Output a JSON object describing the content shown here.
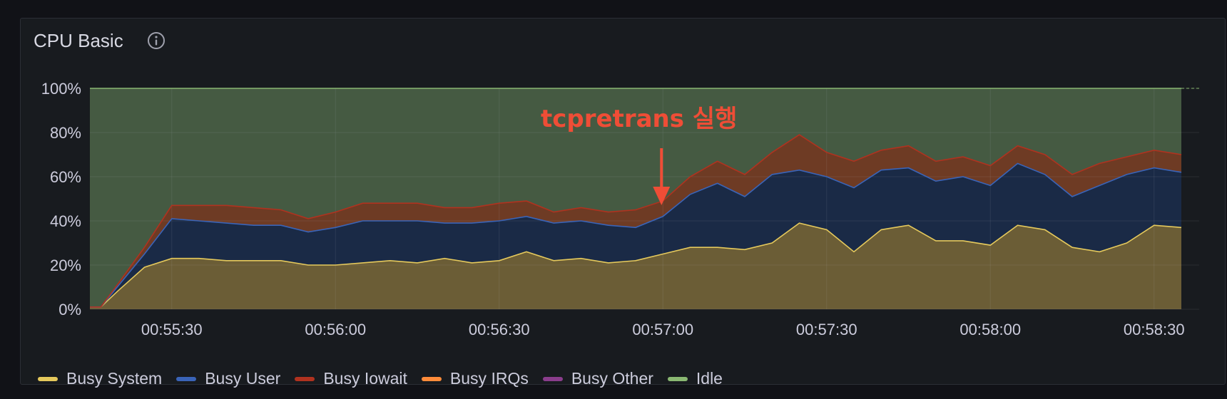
{
  "panel": {
    "title": "CPU Basic",
    "info_icon": "info-circle-icon"
  },
  "annotation": {
    "text": "tcpretrans 실행",
    "color": "#ef4d36",
    "at_x": "00:57:00"
  },
  "chart_data": {
    "type": "area",
    "stacked": true,
    "y_ticks": [
      "0%",
      "20%",
      "40%",
      "60%",
      "80%",
      "100%"
    ],
    "ylim": [
      0,
      100
    ],
    "x_ticks": [
      "00:55:30",
      "00:56:00",
      "00:56:30",
      "00:57:00",
      "00:57:30",
      "00:58:00",
      "00:58:30"
    ],
    "x": [
      "00:55:15",
      "00:55:17",
      "00:55:20",
      "00:55:25",
      "00:55:30",
      "00:55:35",
      "00:55:40",
      "00:55:45",
      "00:55:50",
      "00:55:55",
      "00:56:00",
      "00:56:05",
      "00:56:10",
      "00:56:15",
      "00:56:20",
      "00:56:25",
      "00:56:30",
      "00:56:35",
      "00:56:40",
      "00:56:45",
      "00:56:50",
      "00:56:55",
      "00:57:00",
      "00:57:05",
      "00:57:10",
      "00:57:15",
      "00:57:20",
      "00:57:25",
      "00:57:30",
      "00:57:35",
      "00:57:40",
      "00:57:45",
      "00:57:50",
      "00:57:55",
      "00:58:00",
      "00:58:05",
      "00:58:10",
      "00:58:15",
      "00:58:20",
      "00:58:25",
      "00:58:30",
      "00:58:35"
    ],
    "grid": true,
    "legend_position": "bottom",
    "series": [
      {
        "name": "Busy System",
        "color": "#e5c95c",
        "fill": "#6b5d36",
        "values": [
          1,
          1,
          8,
          19,
          23,
          23,
          22,
          22,
          22,
          20,
          20,
          21,
          22,
          21,
          23,
          21,
          22,
          26,
          22,
          23,
          21,
          22,
          25,
          28,
          28,
          27,
          30,
          39,
          36,
          26,
          36,
          38,
          31,
          31,
          29,
          38,
          36,
          28,
          26,
          30,
          38,
          37
        ]
      },
      {
        "name": "Busy User",
        "color": "#3a64b8",
        "fill": "#1a2a46",
        "values": [
          0,
          0,
          2,
          6,
          18,
          17,
          17,
          16,
          16,
          15,
          17,
          19,
          18,
          19,
          16,
          18,
          18,
          16,
          17,
          17,
          17,
          15,
          17,
          24,
          29,
          24,
          31,
          24,
          24,
          29,
          27,
          26,
          27,
          29,
          27,
          28,
          25,
          23,
          30,
          31,
          26,
          25
        ]
      },
      {
        "name": "Busy Iowait",
        "color": "#b0321f",
        "fill": "#6e3b24",
        "values": [
          0,
          0,
          1,
          3,
          6,
          7,
          8,
          8,
          7,
          6,
          7,
          8,
          8,
          8,
          7,
          7,
          8,
          7,
          5,
          6,
          6,
          8,
          7,
          8,
          10,
          10,
          10,
          16,
          11,
          12,
          9,
          10,
          9,
          9,
          9,
          8,
          9,
          10,
          10,
          8,
          8,
          8
        ]
      },
      {
        "name": "Busy IRQs",
        "color": "#ff8c3a",
        "fill": "#7a4a2a",
        "values": [
          0,
          0,
          0,
          0,
          0,
          0,
          0,
          0,
          0,
          0,
          0,
          0,
          0,
          0,
          0,
          0,
          0,
          0,
          0,
          0,
          0,
          0,
          0,
          0,
          0,
          0,
          0,
          0,
          0,
          0,
          0,
          0,
          0,
          0,
          0,
          0,
          0,
          0,
          0,
          0,
          0,
          0
        ]
      },
      {
        "name": "Busy Other",
        "color": "#8a3d8c",
        "fill": "#6e3b24",
        "values": [
          0,
          0,
          0,
          0,
          0,
          0,
          0,
          0,
          0,
          0,
          0,
          0,
          0,
          0,
          0,
          0,
          0,
          0,
          0,
          0,
          0,
          0,
          0,
          0,
          0,
          0,
          0,
          0,
          0,
          0,
          0,
          0,
          0,
          0,
          0,
          0,
          0,
          0,
          0,
          0,
          0,
          0
        ]
      },
      {
        "name": "Idle",
        "color": "#8ab872",
        "fill": "#455a42",
        "values": [
          99,
          99,
          89,
          72,
          53,
          53,
          53,
          54,
          55,
          59,
          56,
          52,
          52,
          52,
          54,
          54,
          52,
          51,
          56,
          54,
          56,
          55,
          51,
          40,
          33,
          39,
          29,
          21,
          29,
          33,
          28,
          26,
          33,
          31,
          35,
          26,
          30,
          39,
          34,
          31,
          28,
          30
        ]
      }
    ]
  },
  "legend": {
    "items": [
      {
        "label": "Busy System",
        "color": "#e5c95c"
      },
      {
        "label": "Busy User",
        "color": "#3a64b8"
      },
      {
        "label": "Busy Iowait",
        "color": "#b0321f"
      },
      {
        "label": "Busy IRQs",
        "color": "#ff8c3a"
      },
      {
        "label": "Busy Other",
        "color": "#8a3d8c"
      },
      {
        "label": "Idle",
        "color": "#8ab872"
      }
    ]
  }
}
